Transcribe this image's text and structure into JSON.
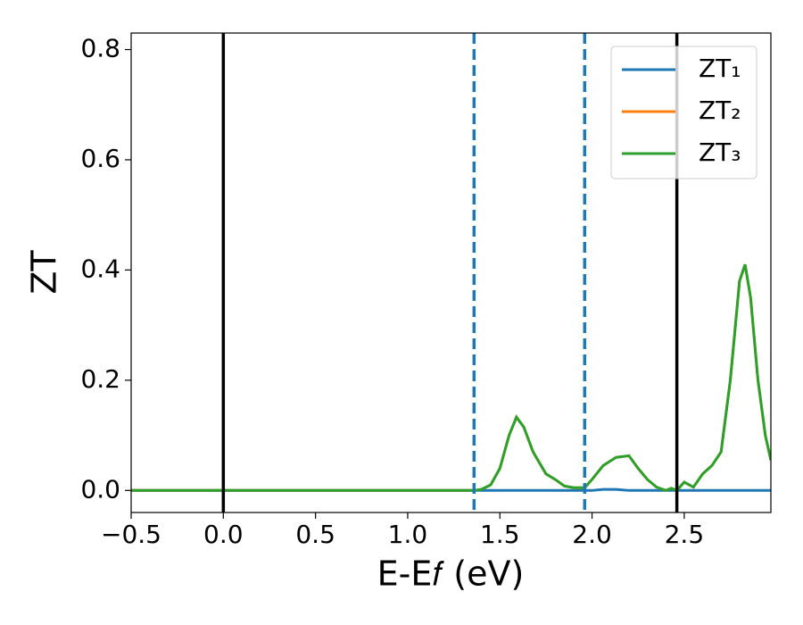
{
  "chart_data": {
    "type": "line",
    "x_label": "E-E𝑓 (eV)",
    "y_label": "ZT",
    "x": [
      -0.5,
      1.3,
      1.36,
      1.4,
      1.45,
      1.5,
      1.55,
      1.59,
      1.63,
      1.68,
      1.75,
      1.8,
      1.85,
      1.9,
      1.96,
      2.0,
      2.06,
      2.13,
      2.2,
      2.25,
      2.3,
      2.35,
      2.4,
      2.43,
      2.46,
      2.5,
      2.55,
      2.6,
      2.65,
      2.7,
      2.75,
      2.8,
      2.83,
      2.86,
      2.9,
      2.94,
      2.97
    ],
    "series": [
      {
        "name": "ZT₁",
        "color": "#1f77b4",
        "values": [
          0,
          0,
          0,
          0,
          0,
          0,
          0,
          0,
          0,
          0,
          0,
          0,
          0,
          0,
          0,
          0,
          0.002,
          0.002,
          0,
          0,
          0,
          0,
          0,
          0,
          0,
          0,
          0,
          0,
          0,
          0,
          0,
          0,
          0,
          0,
          0,
          0,
          0
        ]
      },
      {
        "name": "ZT₂",
        "color": "#ff7f0e",
        "values": [
          0,
          0,
          0,
          0.002,
          0.01,
          0.04,
          0.1,
          0.133,
          0.115,
          0.07,
          0.03,
          0.02,
          0.008,
          0.005,
          0.005,
          0.02,
          0.045,
          0.06,
          0.063,
          0.04,
          0.02,
          0.006,
          0,
          0.004,
          0,
          0.015,
          0.006,
          0.03,
          0.045,
          0.07,
          0.2,
          0.38,
          0.41,
          0.35,
          0.2,
          0.1,
          0.055
        ]
      },
      {
        "name": "ZT₃",
        "color": "#2ca02c",
        "values": [
          0,
          0,
          0,
          0.002,
          0.01,
          0.04,
          0.1,
          0.133,
          0.115,
          0.07,
          0.03,
          0.02,
          0.008,
          0.005,
          0.005,
          0.02,
          0.045,
          0.06,
          0.063,
          0.04,
          0.02,
          0.006,
          0,
          0.004,
          0,
          0.015,
          0.006,
          0.03,
          0.045,
          0.07,
          0.2,
          0.38,
          0.41,
          0.35,
          0.2,
          0.1,
          0.055
        ]
      }
    ],
    "vlines": [
      {
        "x": 0,
        "color": "#000000",
        "style": "solid"
      },
      {
        "x": 1.36,
        "color": "#1f77b4",
        "style": "dashed"
      },
      {
        "x": 1.96,
        "color": "#1f77b4",
        "style": "dashed"
      },
      {
        "x": 2.46,
        "color": "#000000",
        "style": "solid"
      }
    ],
    "xlim": [
      -0.5,
      2.97
    ],
    "ylim": [
      -0.04,
      0.83
    ],
    "xticks": [
      {
        "value": -0.5,
        "label": "−0.5"
      },
      {
        "value": 0,
        "label": "0.0"
      },
      {
        "value": 0.5,
        "label": "0.5"
      },
      {
        "value": 1,
        "label": "1.0"
      },
      {
        "value": 1.5,
        "label": "1.5"
      },
      {
        "value": 2,
        "label": "2.0"
      },
      {
        "value": 2.5,
        "label": "2.5"
      }
    ],
    "yticks": [
      {
        "value": 0,
        "label": "0.0"
      },
      {
        "value": 0.2,
        "label": "0.2"
      },
      {
        "value": 0.4,
        "label": "0.4"
      },
      {
        "value": 0.6,
        "label": "0.6"
      },
      {
        "value": 0.8,
        "label": "0.8"
      }
    ],
    "legend": "upper right"
  }
}
